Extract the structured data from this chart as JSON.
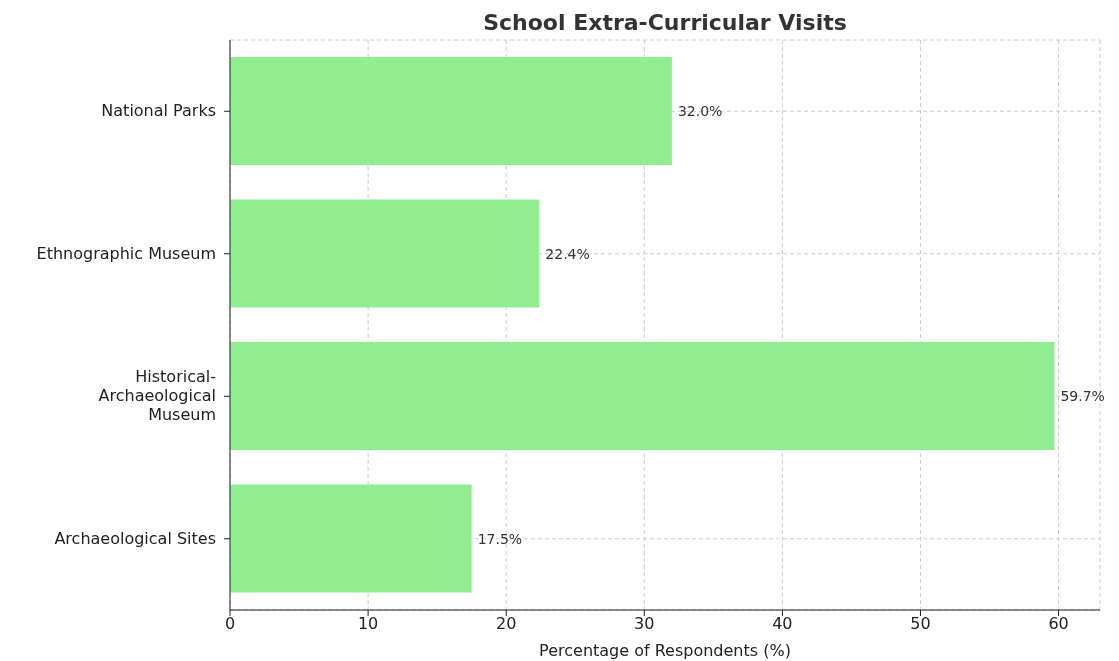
{
  "chart_data": {
    "type": "bar",
    "orientation": "horizontal",
    "title": "School Extra-Curricular Visits",
    "xlabel": "Percentage of Respondents (%)",
    "categories": [
      "National Parks",
      "Ethnographic Museum",
      "Historical-Archaeological Museum",
      "Archaeological Sites"
    ],
    "values": [
      32.0,
      22.4,
      59.7,
      17.5
    ],
    "color": "#90ee90",
    "value_labels": [
      "32.0%",
      "22.4%",
      "59.7%",
      "17.5%"
    ],
    "xlim": [
      0,
      63
    ],
    "xticks": [
      0,
      10,
      20,
      30,
      40,
      50,
      60
    ],
    "grid": true,
    "line_style": "dashed"
  }
}
